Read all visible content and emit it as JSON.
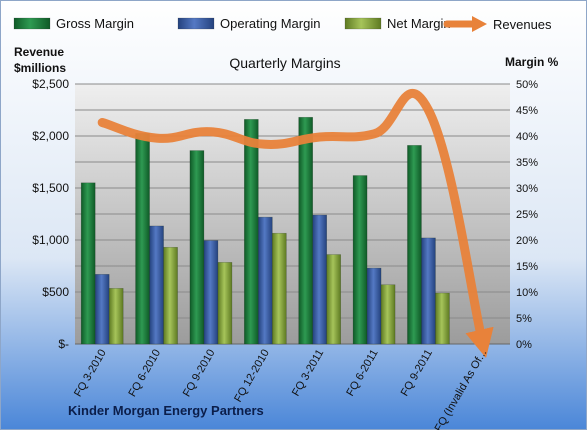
{
  "chart_data": {
    "type": "bar",
    "title": "Quarterly Margins",
    "footer": "Kinder Morgan  Energy Partners",
    "left_axis": {
      "label_line1": "Revenue",
      "label_line2": "$millions",
      "min": 0,
      "max": 2500,
      "ticks": [
        "$-",
        "$500",
        "$1,000",
        "$1,500",
        "$2,000",
        "$2,500"
      ]
    },
    "right_axis": {
      "label": "Margin %",
      "min": 0,
      "max": 50,
      "ticks": [
        "0%",
        "5%",
        "10%",
        "15%",
        "20%",
        "25%",
        "30%",
        "35%",
        "40%",
        "45%",
        "50%"
      ]
    },
    "categories": [
      "FQ 3-2010",
      "FQ 6-2010",
      "FQ 9-2010",
      "FQ 12-2010",
      "FQ 3-2011",
      "FQ 6-2011",
      "FQ 9-2011",
      "FQ (Invalid As Of..."
    ],
    "series": [
      {
        "name": "Gross Margin",
        "type": "bar",
        "axis": "right",
        "color": "#1E7A3C",
        "values": [
          31,
          40.5,
          37.2,
          43.2,
          43.6,
          32.4,
          38.2,
          null
        ]
      },
      {
        "name": "Operating Margin",
        "type": "bar",
        "axis": "right",
        "color": "#3A5FA8",
        "values": [
          13.4,
          22.7,
          19.9,
          24.4,
          24.8,
          14.6,
          20.4,
          null
        ]
      },
      {
        "name": "Net Margin",
        "type": "bar",
        "axis": "right",
        "color": "#86A83A",
        "values": [
          10.7,
          18.6,
          15.7,
          21.3,
          17.2,
          11.4,
          9.8,
          null
        ]
      },
      {
        "name": "Revenues",
        "type": "line",
        "axis": "left",
        "color": "#E8823A",
        "values": [
          2130,
          1980,
          2040,
          1920,
          1990,
          2020,
          2250,
          0
        ]
      }
    ],
    "legend": {
      "position": "top"
    },
    "grid": true
  }
}
